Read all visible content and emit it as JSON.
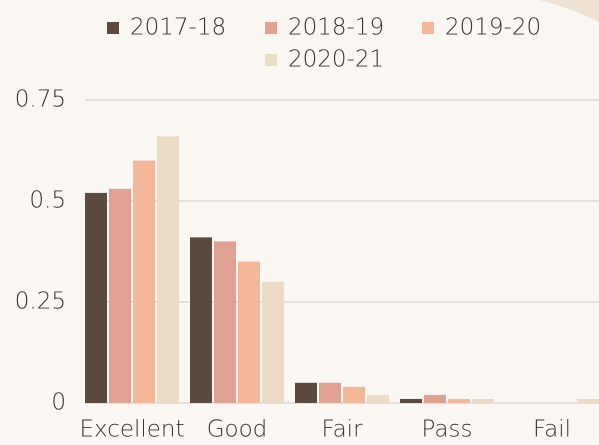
{
  "chart_data": {
    "type": "bar",
    "categories": [
      "Excellent",
      "Good",
      "Fair",
      "Pass",
      "Fail"
    ],
    "series": [
      {
        "name": "2017-18",
        "color": "#5c4a3f",
        "values": [
          0.52,
          0.41,
          0.05,
          0.01,
          0
        ]
      },
      {
        "name": "2018-19",
        "color": "#e0a190",
        "values": [
          0.53,
          0.4,
          0.05,
          0.02,
          0
        ]
      },
      {
        "name": "2019-20",
        "color": "#f4b899",
        "values": [
          0.6,
          0.35,
          0.04,
          0.01,
          0
        ]
      },
      {
        "name": "2020-21",
        "color": "#ecdcc6",
        "values": [
          0.66,
          0.3,
          0.02,
          0.01,
          0.01
        ]
      }
    ],
    "ylim": [
      0,
      0.75
    ],
    "yticks": [
      0,
      0.25,
      0.5,
      0.75
    ],
    "grid": true
  }
}
